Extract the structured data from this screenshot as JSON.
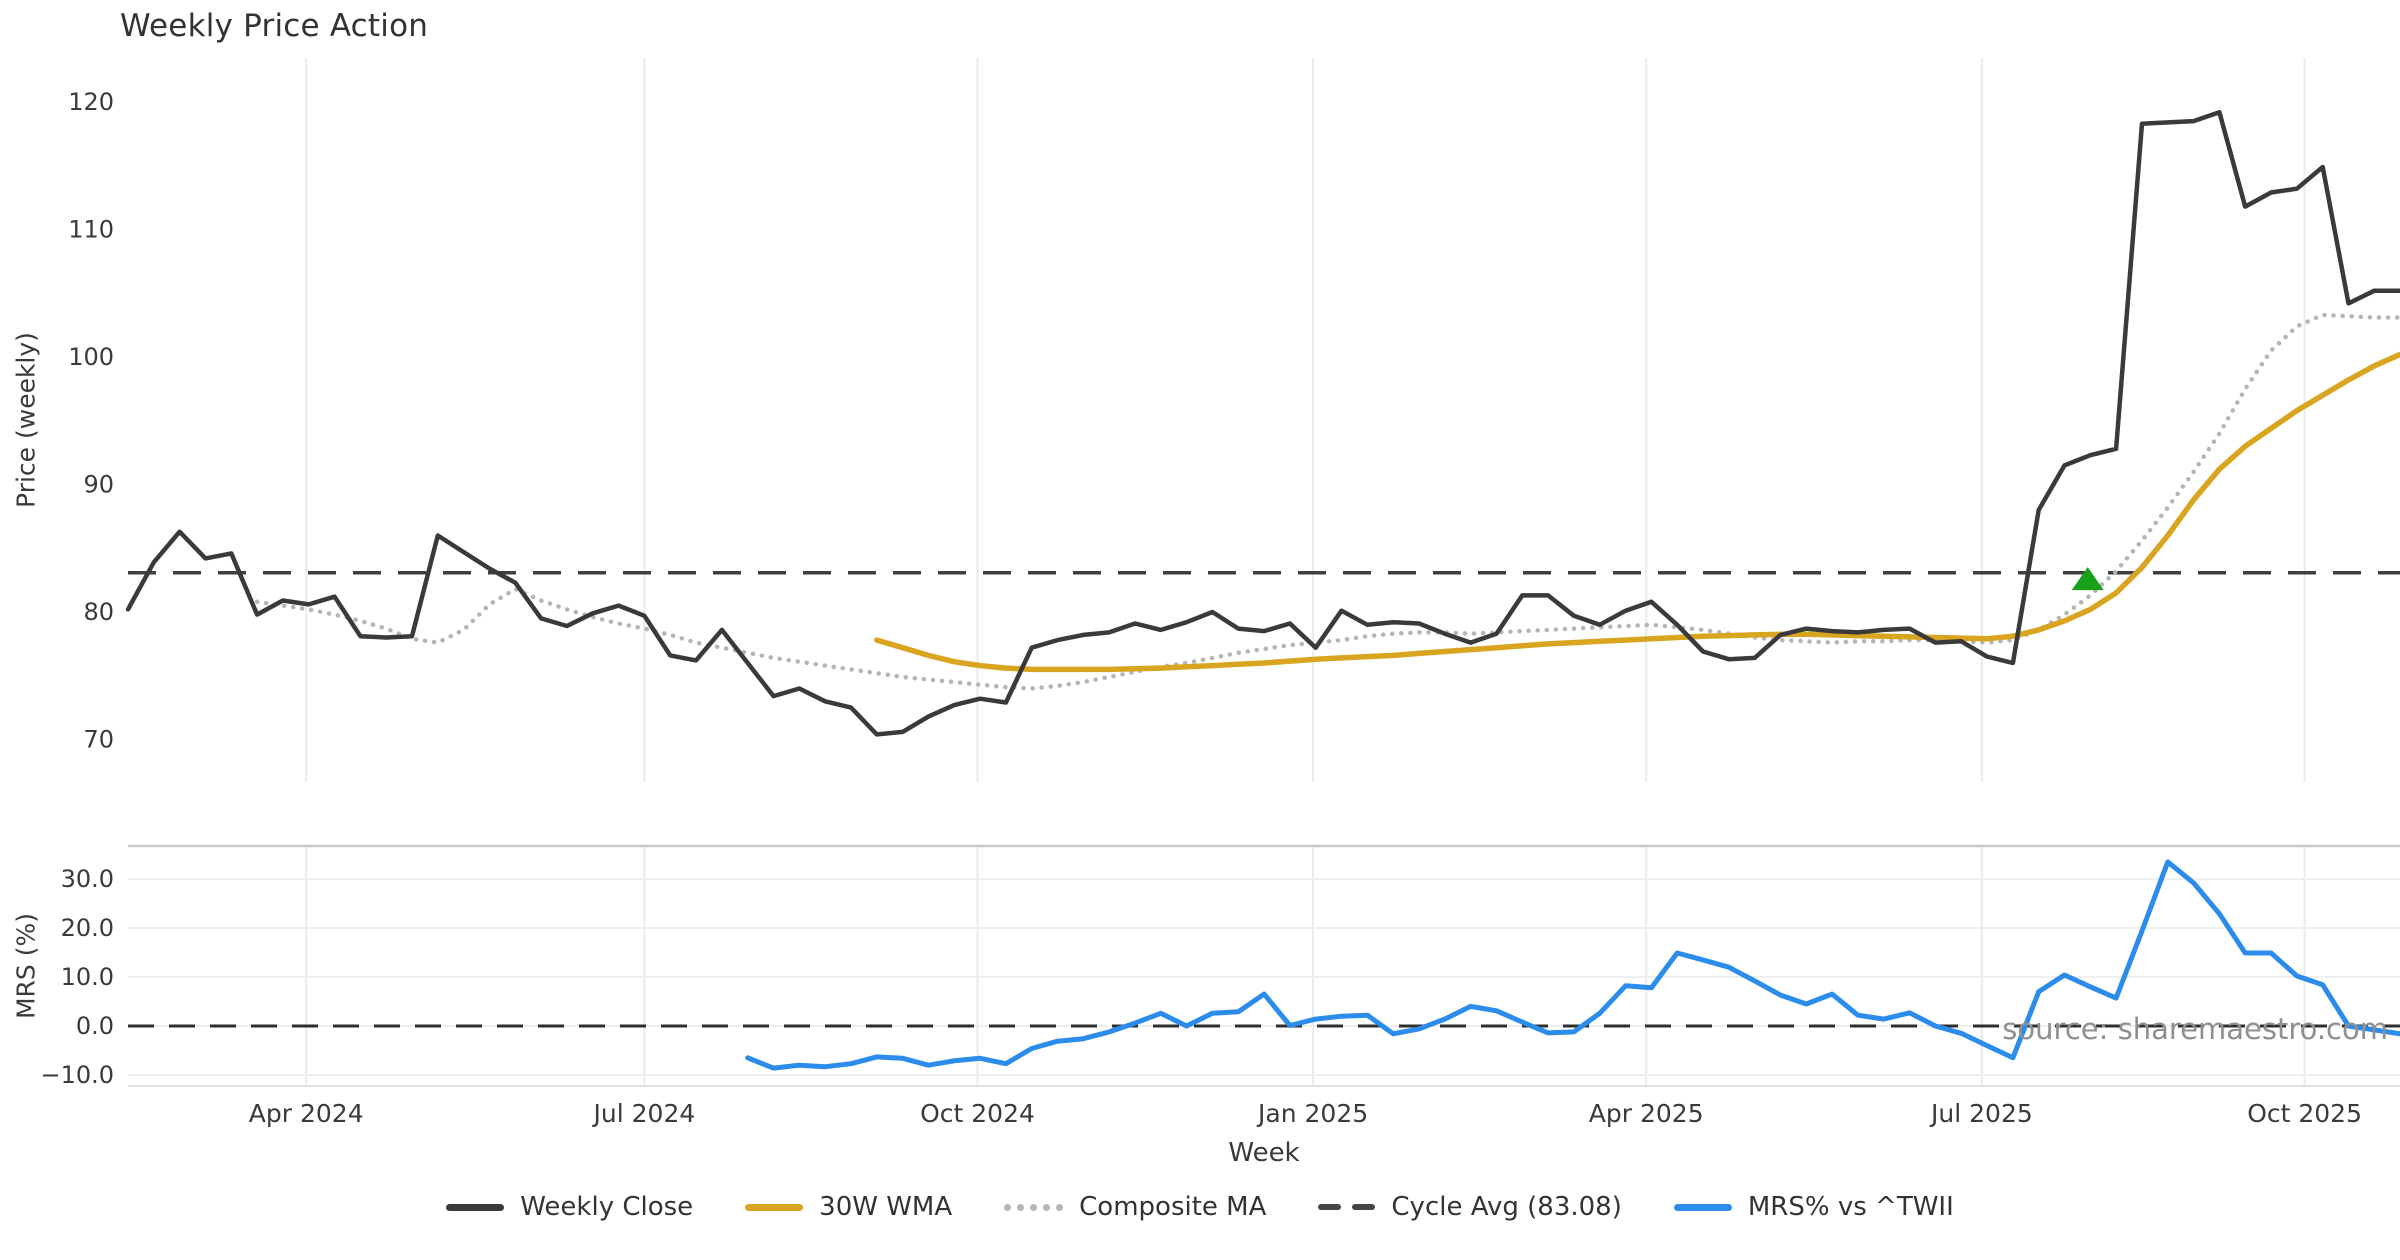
{
  "title": "Weekly Price Action",
  "source_note": "source: sharemaestro.com",
  "colors": {
    "close": "#3a3a3a",
    "wma": "#d9a521",
    "composite": "#b5b5b5",
    "cycle": "#3f3f3f",
    "mrs": "#2b8ceb",
    "marker": "#18a018",
    "grid_v": "#e8ebef",
    "grid_h": "#efefef",
    "spine": "#c9c9c9",
    "spine_light": "#e2e2e2",
    "tick_text": "#3a3a3a",
    "zero_line": "#2f2f2f"
  },
  "legend": {
    "items": [
      {
        "label": "Weekly Close",
        "swatch": "solid-dark"
      },
      {
        "label": "30W WMA",
        "swatch": "solid-gold"
      },
      {
        "label": "Composite MA",
        "swatch": "dotted-gray"
      },
      {
        "label": "Cycle Avg (83.08)",
        "swatch": "dashed-dark"
      },
      {
        "label": "MRS% vs ^TWII",
        "swatch": "solid-blue"
      }
    ]
  },
  "chart_data": [
    {
      "type": "line",
      "panel": "price",
      "title": "Weekly Price Action",
      "ylabel": "Price (weekly)",
      "xlabel": "Week",
      "x_unit": "weekly index, week 0 = mid-Feb 2024",
      "ylim": [
        66.6,
        123.4
      ],
      "grid": "vertical-only",
      "y_ticks": [
        {
          "label": "70",
          "value": 70
        },
        {
          "label": "80",
          "value": 80
        },
        {
          "label": "90",
          "value": 90
        },
        {
          "label": "100",
          "value": 100
        },
        {
          "label": "110",
          "value": 110
        },
        {
          "label": "120",
          "value": 120
        }
      ],
      "x_ticks": [
        {
          "label": "Apr 2024",
          "week": 6.9
        },
        {
          "label": "Jul 2024",
          "week": 20.0
        },
        {
          "label": "Oct 2024",
          "week": 32.9
        },
        {
          "label": "Jan 2025",
          "week": 45.9
        },
        {
          "label": "Apr 2025",
          "week": 58.8
        },
        {
          "label": "Jul 2025",
          "week": 71.8
        },
        {
          "label": "Oct 2025",
          "week": 84.3
        }
      ],
      "series": [
        {
          "name": "Weekly Close",
          "style": "solid",
          "color_key": "close",
          "width": 4.5,
          "start_week": 0,
          "values": [
            80.2,
            83.9,
            86.3,
            84.2,
            84.6,
            79.8,
            80.9,
            80.6,
            81.2,
            78.1,
            78.0,
            78.1,
            86.0,
            84.7,
            83.4,
            82.3,
            79.5,
            78.9,
            79.9,
            80.5,
            79.7,
            76.6,
            76.2,
            78.6,
            76.0,
            73.4,
            74.0,
            73.0,
            72.5,
            70.4,
            70.6,
            71.8,
            72.7,
            73.2,
            72.9,
            77.2,
            77.8,
            78.2,
            78.4,
            79.1,
            78.6,
            79.2,
            80.0,
            78.7,
            78.5,
            79.1,
            77.2,
            80.1,
            79.0,
            79.2,
            79.1,
            78.3,
            77.6,
            78.3,
            81.3,
            81.3,
            79.7,
            79.0,
            80.1,
            80.8,
            79.0,
            76.9,
            76.3,
            76.4,
            78.2,
            78.7,
            78.5,
            78.4,
            78.6,
            78.7,
            77.6,
            77.7,
            76.5,
            76.0,
            88.0,
            91.5,
            92.3,
            92.8,
            118.3,
            118.4,
            118.5,
            119.2,
            111.8,
            112.9,
            113.2,
            114.9,
            104.2,
            105.2,
            105.2
          ]
        },
        {
          "name": "30W WMA",
          "style": "solid",
          "color_key": "wma",
          "width": 5.5,
          "start_week": 29,
          "values": [
            77.8,
            77.2,
            76.6,
            76.1,
            75.8,
            75.6,
            75.5,
            75.5,
            75.5,
            75.5,
            75.55,
            75.6,
            75.7,
            75.8,
            75.9,
            76.0,
            76.15,
            76.3,
            76.4,
            76.5,
            76.6,
            76.75,
            76.9,
            77.05,
            77.2,
            77.35,
            77.5,
            77.6,
            77.7,
            77.8,
            77.9,
            78.0,
            78.1,
            78.15,
            78.2,
            78.25,
            78.25,
            78.2,
            78.15,
            78.1,
            78.05,
            78.0,
            77.95,
            77.9,
            78.1,
            78.6,
            79.3,
            80.2,
            81.5,
            83.5,
            86.0,
            88.8,
            91.2,
            93.0,
            94.4,
            95.8,
            97.0,
            98.2,
            99.3,
            100.2
          ]
        },
        {
          "name": "Composite MA",
          "style": "dotted",
          "color_key": "composite",
          "width": 4.5,
          "start_week": 5,
          "values": [
            80.8,
            80.5,
            80.2,
            79.8,
            79.3,
            78.7,
            77.9,
            77.6,
            78.6,
            80.6,
            81.8,
            80.9,
            80.2,
            79.6,
            79.1,
            78.7,
            78.2,
            77.6,
            77.2,
            76.8,
            76.4,
            76.1,
            75.8,
            75.5,
            75.2,
            74.9,
            74.7,
            74.5,
            74.3,
            74.1,
            74.0,
            74.2,
            74.5,
            74.9,
            75.3,
            75.7,
            76.0,
            76.4,
            76.8,
            77.1,
            77.4,
            77.6,
            77.8,
            78.1,
            78.3,
            78.4,
            78.4,
            78.3,
            78.4,
            78.5,
            78.6,
            78.7,
            78.8,
            78.9,
            79.0,
            78.8,
            78.6,
            78.3,
            78.0,
            77.8,
            77.7,
            77.6,
            77.7,
            77.7,
            77.8,
            77.8,
            77.7,
            77.6,
            77.8,
            78.6,
            79.8,
            81.3,
            83.2,
            85.6,
            88.2,
            91.0,
            94.0,
            97.5,
            100.5,
            102.4,
            103.3,
            103.2,
            103.1,
            103.1
          ]
        },
        {
          "name": "Cycle Avg (83.08)",
          "style": "dashed-horizontal",
          "color_key": "cycle",
          "width": 3.5,
          "value": 83.08
        }
      ],
      "marker": {
        "shape": "triangle-up",
        "color_key": "marker",
        "week": 75.9,
        "value": 82.5
      }
    },
    {
      "type": "line",
      "panel": "mrs",
      "ylabel": "MRS (%)",
      "ylim": [
        -12.2,
        36.7
      ],
      "grid": "both",
      "zero_line": 0,
      "y_ticks": [
        {
          "label": "−10.0",
          "value": -10
        },
        {
          "label": "0.0",
          "value": 0
        },
        {
          "label": "10.0",
          "value": 10
        },
        {
          "label": "20.0",
          "value": 20
        },
        {
          "label": "30.0",
          "value": 30
        }
      ],
      "series": [
        {
          "name": "MRS% vs ^TWII",
          "style": "solid",
          "color_key": "mrs",
          "width": 5,
          "start_week": 24,
          "values": [
            -6.5,
            -8.6,
            -8.0,
            -8.3,
            -7.7,
            -6.3,
            -6.6,
            -8.0,
            -7.1,
            -6.6,
            -7.7,
            -4.6,
            -3.1,
            -2.6,
            -1.2,
            0.6,
            2.6,
            0.0,
            2.6,
            2.9,
            6.5,
            0.1,
            1.4,
            2.0,
            2.2,
            -1.6,
            -0.6,
            1.4,
            4.0,
            3.1,
            0.8,
            -1.4,
            -1.2,
            2.6,
            8.2,
            7.8,
            14.9,
            13.5,
            12.0,
            9.2,
            6.3,
            4.5,
            6.5,
            2.2,
            1.4,
            2.7,
            0.0,
            -1.5,
            -4.0,
            -6.5,
            7.0,
            10.4,
            8.0,
            5.7,
            19.4,
            33.5,
            29.2,
            22.9,
            14.9,
            14.9,
            10.2,
            8.4,
            0.0,
            -0.8,
            -1.6
          ]
        }
      ]
    }
  ]
}
